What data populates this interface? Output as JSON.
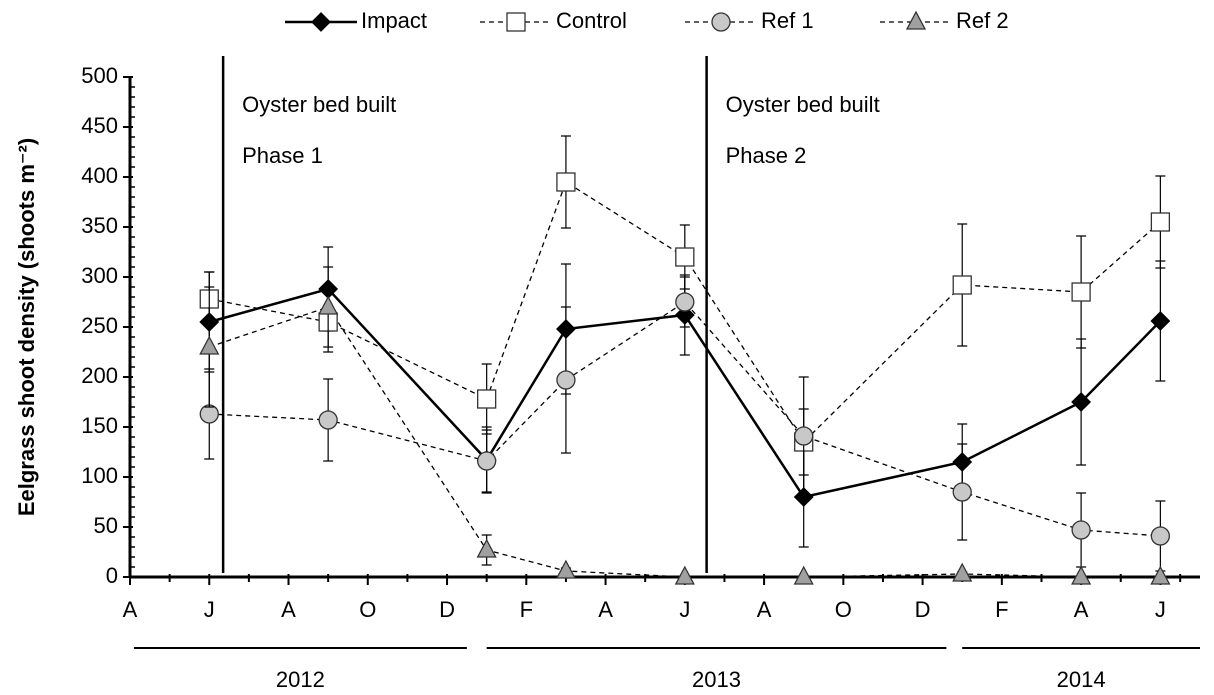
{
  "chart_data": {
    "type": "line",
    "ylabel": "Eelgrass shoot density (shoots m⁻²)",
    "xlim": [
      0,
      27
    ],
    "xticks": [
      {
        "value": 0,
        "label": "A"
      },
      {
        "value": 2,
        "label": "J"
      },
      {
        "value": 4,
        "label": "A"
      },
      {
        "value": 6,
        "label": "O"
      },
      {
        "value": 8,
        "label": "D"
      },
      {
        "value": 10,
        "label": "F"
      },
      {
        "value": 12,
        "label": "A"
      },
      {
        "value": 14,
        "label": "J"
      },
      {
        "value": 16,
        "label": "A"
      },
      {
        "value": 18,
        "label": "O"
      },
      {
        "value": 20,
        "label": "D"
      },
      {
        "value": 22,
        "label": "F"
      },
      {
        "value": 24,
        "label": "A"
      },
      {
        "value": 26,
        "label": "J"
      }
    ],
    "ylim": [
      0,
      500
    ],
    "yticks": [
      0,
      50,
      100,
      150,
      200,
      250,
      300,
      350,
      400,
      450,
      500
    ],
    "x": [
      2,
      5,
      9,
      11,
      14,
      17,
      21,
      24,
      26
    ],
    "series": [
      {
        "name": "Impact",
        "color": "#000000",
        "marker": "diamond",
        "dashed": false,
        "values": [
          255,
          288,
          117,
          248,
          262,
          80,
          115,
          175,
          256
        ],
        "errors": [
          50,
          42,
          33,
          65,
          40,
          50,
          38,
          63,
          60
        ]
      },
      {
        "name": "Control",
        "color": "#ffffff",
        "marker": "square",
        "dashed": true,
        "values": [
          278,
          255,
          178,
          395,
          320,
          135,
          292,
          285,
          355
        ],
        "errors": [
          27,
          30,
          35,
          46,
          32,
          33,
          61,
          56,
          46
        ]
      },
      {
        "name": "Ref 1",
        "color": "#c8c8c8",
        "marker": "circle",
        "dashed": true,
        "values": [
          163,
          157,
          116,
          197,
          275,
          141,
          85,
          47,
          41
        ],
        "errors": [
          45,
          41,
          31,
          73,
          25,
          59,
          48,
          37,
          35
        ]
      },
      {
        "name": "Ref 2",
        "color": "#a0a0a0",
        "marker": "triangle",
        "dashed": true,
        "values": [
          230,
          270,
          27,
          6,
          0,
          0,
          3,
          0,
          0
        ],
        "errors": [
          60,
          40,
          15,
          3,
          0,
          0,
          2,
          0,
          0
        ]
      }
    ],
    "events": [
      {
        "x": 2.35,
        "label": "Oyster bed built",
        "sublabel": "Phase 1"
      },
      {
        "x": 14.55,
        "label": "Oyster bed built",
        "sublabel": "Phase 2"
      }
    ],
    "year_groups": [
      {
        "label": "2012",
        "from": 0.1,
        "to": 8.5
      },
      {
        "label": "2013",
        "from": 9,
        "to": 20.6
      },
      {
        "label": "2014",
        "from": 21,
        "to": 27
      }
    ]
  }
}
